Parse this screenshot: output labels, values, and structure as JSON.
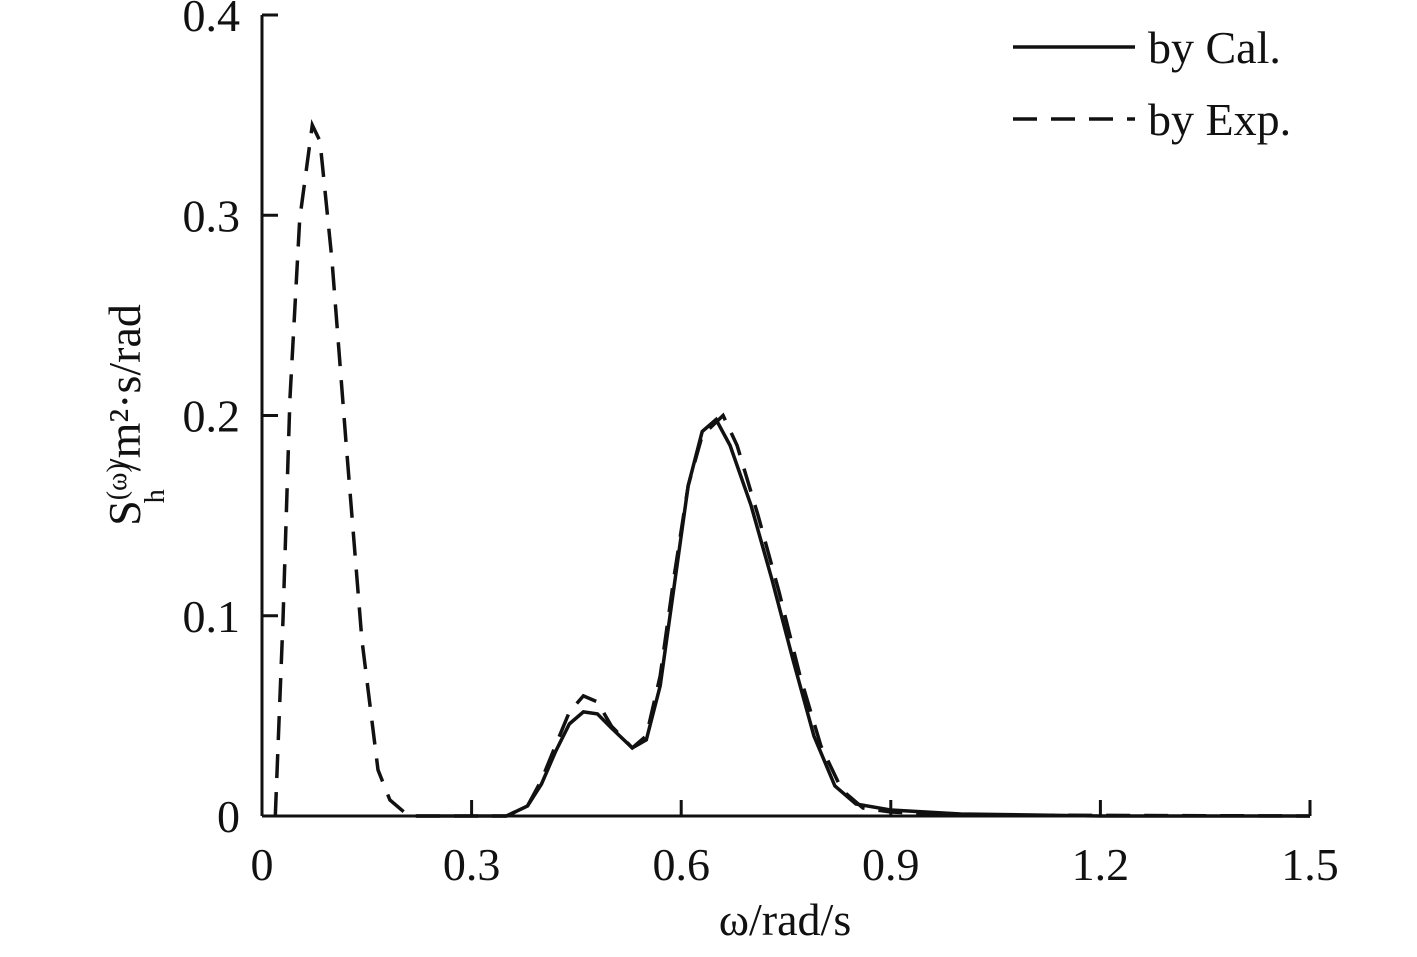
{
  "chart_data": {
    "type": "line",
    "x_label": "ω/rad/s",
    "y_label": {
      "base": "S",
      "sub": "h",
      "sup": "(ω)",
      "unit": "/m²·s/rad"
    },
    "xlim": [
      0,
      1.5
    ],
    "xticks": [
      0,
      0.3,
      0.6,
      0.9,
      1.2,
      1.5
    ],
    "ylim": [
      0,
      0.4
    ],
    "yticks": [
      0,
      0.1,
      0.2,
      0.3,
      0.4
    ],
    "grid": false,
    "legend": "top-right",
    "series": [
      {
        "name": "by Cal.",
        "color": "#111111",
        "dash": "solid",
        "x": [
          0.22,
          0.35,
          0.38,
          0.4,
          0.42,
          0.44,
          0.46,
          0.48,
          0.5,
          0.53,
          0.55,
          0.57,
          0.59,
          0.61,
          0.63,
          0.65,
          0.67,
          0.7,
          0.73,
          0.76,
          0.79,
          0.82,
          0.85,
          0.9,
          1.0,
          1.2,
          1.5
        ],
        "values": [
          0,
          0,
          0.005,
          0.016,
          0.032,
          0.046,
          0.052,
          0.051,
          0.044,
          0.034,
          0.038,
          0.065,
          0.115,
          0.165,
          0.192,
          0.198,
          0.185,
          0.155,
          0.118,
          0.078,
          0.04,
          0.015,
          0.006,
          0.003,
          0.001,
          0,
          0
        ]
      },
      {
        "name": "by Exp.",
        "color": "#111111",
        "dash": "dashed",
        "x": [
          0.019,
          0.03,
          0.04,
          0.054,
          0.072,
          0.083,
          0.1,
          0.12,
          0.143,
          0.166,
          0.183,
          0.21,
          0.35,
          0.38,
          0.4,
          0.42,
          0.44,
          0.46,
          0.48,
          0.5,
          0.53,
          0.55,
          0.57,
          0.59,
          0.61,
          0.63,
          0.66,
          0.68,
          0.71,
          0.74,
          0.77,
          0.8,
          0.83,
          0.86,
          0.9,
          1.0,
          1.5
        ],
        "values": [
          0,
          0.098,
          0.208,
          0.298,
          0.345,
          0.337,
          0.278,
          0.188,
          0.088,
          0.023,
          0.008,
          0,
          0,
          0.005,
          0.018,
          0.035,
          0.052,
          0.06,
          0.057,
          0.045,
          0.034,
          0.04,
          0.07,
          0.12,
          0.165,
          0.19,
          0.2,
          0.185,
          0.15,
          0.112,
          0.07,
          0.035,
          0.013,
          0.004,
          0.002,
          0.0005,
          0
        ]
      }
    ]
  }
}
